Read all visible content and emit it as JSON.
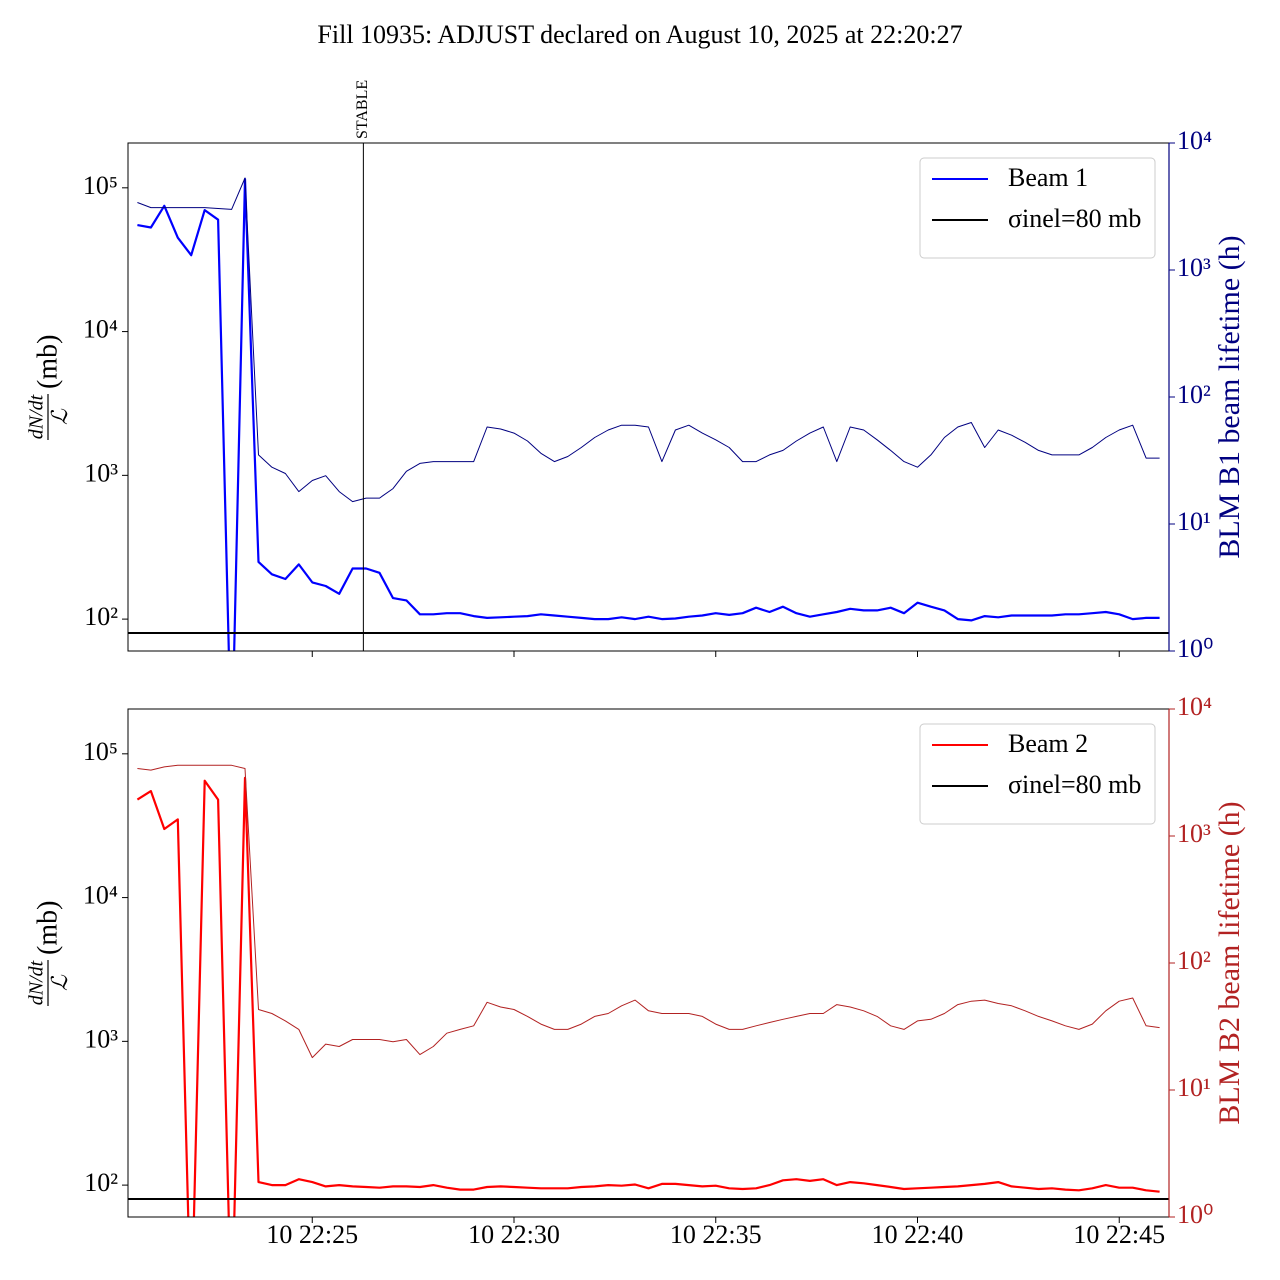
{
  "title": "Fill 10935: ADJUST declared on August 10, 2025 at 22:20:27",
  "chart_data": [
    {
      "type": "line",
      "log_y": true,
      "log_y2": true,
      "legend": "upper right",
      "show_xtick_labels": false,
      "ylabel_numerator": "dN/dt",
      "ylabel_denominator": "ℒ",
      "ylabel_unit": "(mb)",
      "y2label": "BLM B1 beam lifetime (h)",
      "y2color": "#000080",
      "xlim": [
        "10 22:20:26",
        "10 22:46:14"
      ],
      "xticks": [
        "10 22:25:00",
        "10 22:30:00",
        "10 22:35:00",
        "10 22:40:00",
        "10 22:45:00"
      ],
      "ylim": [
        60,
        205000
      ],
      "yticks": [
        {
          "value": 100,
          "label": "10²"
        },
        {
          "value": 1000,
          "label": "10³"
        },
        {
          "value": 10000,
          "label": "10⁴"
        },
        {
          "value": 100000,
          "label": "10⁵"
        }
      ],
      "y2lim": [
        1,
        10000
      ],
      "y2ticks": [
        {
          "value": 1,
          "label": "10⁰"
        },
        {
          "value": 10,
          "label": "10¹"
        },
        {
          "value": 100,
          "label": "10²"
        },
        {
          "value": 1000,
          "label": "10³"
        },
        {
          "value": 10000,
          "label": "10⁴"
        }
      ],
      "annotations": [
        {
          "x": "10 22:26:16",
          "label": "STABLE"
        }
      ],
      "hlines": [
        {
          "name": "σinel=80 mb",
          "value": 80,
          "color": "#000000"
        }
      ],
      "x": [
        "10 22:20:40",
        "10 22:21:00",
        "10 22:21:20",
        "10 22:21:40",
        "10 22:22:00",
        "10 22:22:20",
        "10 22:22:40",
        "10 22:23:00",
        "10 22:23:20",
        "10 22:23:40",
        "10 22:24:00",
        "10 22:24:20",
        "10 22:24:40",
        "10 22:25:00",
        "10 22:25:20",
        "10 22:25:40",
        "10 22:26:00",
        "10 22:26:20",
        "10 22:26:40",
        "10 22:27:00",
        "10 22:27:20",
        "10 22:27:40",
        "10 22:28:00",
        "10 22:28:20",
        "10 22:28:40",
        "10 22:29:00",
        "10 22:29:20",
        "10 22:29:40",
        "10 22:30:00",
        "10 22:30:20",
        "10 22:30:40",
        "10 22:31:00",
        "10 22:31:20",
        "10 22:31:40",
        "10 22:32:00",
        "10 22:32:20",
        "10 22:32:40",
        "10 22:33:00",
        "10 22:33:20",
        "10 22:33:40",
        "10 22:34:00",
        "10 22:34:20",
        "10 22:34:40",
        "10 22:35:00",
        "10 22:35:20",
        "10 22:35:40",
        "10 22:36:00",
        "10 22:36:20",
        "10 22:36:40",
        "10 22:37:00",
        "10 22:37:20",
        "10 22:37:40",
        "10 22:38:00",
        "10 22:38:20",
        "10 22:38:40",
        "10 22:39:00",
        "10 22:39:20",
        "10 22:39:40",
        "10 22:40:00",
        "10 22:40:20",
        "10 22:40:40",
        "10 22:41:00",
        "10 22:41:20",
        "10 22:41:40",
        "10 22:42:00",
        "10 22:42:20",
        "10 22:42:40",
        "10 22:43:00",
        "10 22:43:20",
        "10 22:43:40",
        "10 22:44:00",
        "10 22:44:20",
        "10 22:44:40",
        "10 22:45:00",
        "10 22:45:20",
        "10 22:45:40",
        "10 22:46:00"
      ],
      "series": [
        {
          "name": "Beam 1",
          "color": "#0000ff",
          "axis": "y",
          "width": 2.2,
          "values": [
            55000,
            53000,
            75000,
            45000,
            34000,
            70000,
            60000,
            10,
            115000,
            250,
            205,
            190,
            240,
            180,
            170,
            150,
            225,
            225,
            210,
            140,
            135,
            108,
            108,
            110,
            110,
            105,
            102,
            103,
            104,
            105,
            108,
            106,
            104,
            102,
            100,
            100,
            103,
            100,
            104,
            100,
            101,
            104,
            106,
            110,
            107,
            110,
            120,
            112,
            122,
            110,
            104,
            108,
            112,
            118,
            115,
            115,
            120,
            110,
            130,
            122,
            115,
            100,
            98,
            105,
            103,
            106,
            106,
            106,
            106,
            108,
            108,
            110,
            112,
            108,
            100,
            102,
            102
          ]
        },
        {
          "color": "#000080",
          "axis": "y2",
          "width": 1,
          "values": [
            3400,
            3100,
            3100,
            3100,
            3100,
            3100,
            3050,
            3000,
            5300,
            35,
            28,
            25,
            18,
            22,
            24,
            18,
            15,
            16,
            16,
            19,
            26,
            30,
            31,
            31,
            31,
            31,
            58,
            56,
            52,
            45,
            36,
            31,
            34,
            40,
            48,
            55,
            60,
            60,
            58,
            31,
            55,
            60,
            52,
            46,
            40,
            31,
            31,
            35,
            38,
            45,
            52,
            58,
            31,
            58,
            55,
            46,
            38,
            31,
            28,
            35,
            48,
            58,
            63,
            40,
            55,
            50,
            44,
            38,
            35,
            35,
            35,
            40,
            48,
            55,
            60,
            33,
            33
          ]
        }
      ]
    },
    {
      "type": "line",
      "log_y": true,
      "log_y2": true,
      "legend": "upper right",
      "show_xtick_labels": true,
      "ylabel_numerator": "dN/dt",
      "ylabel_denominator": "ℒ",
      "ylabel_unit": "(mb)",
      "y2label": "BLM B2 beam lifetime (h)",
      "y2color": "#b22222",
      "xlim": [
        "10 22:20:26",
        "10 22:46:14"
      ],
      "xticks": [
        {
          "value": "10 22:25:00",
          "label": "10 22:25"
        },
        {
          "value": "10 22:30:00",
          "label": "10 22:30"
        },
        {
          "value": "10 22:35:00",
          "label": "10 22:35"
        },
        {
          "value": "10 22:40:00",
          "label": "10 22:40"
        },
        {
          "value": "10 22:45:00",
          "label": "10 22:45"
        }
      ],
      "ylim": [
        60,
        205000
      ],
      "yticks": [
        {
          "value": 100,
          "label": "10²"
        },
        {
          "value": 1000,
          "label": "10³"
        },
        {
          "value": 10000,
          "label": "10⁴"
        },
        {
          "value": 100000,
          "label": "10⁵"
        }
      ],
      "y2lim": [
        1,
        10000
      ],
      "y2ticks": [
        {
          "value": 1,
          "label": "10⁰"
        },
        {
          "value": 10,
          "label": "10¹"
        },
        {
          "value": 100,
          "label": "10²"
        },
        {
          "value": 1000,
          "label": "10³"
        },
        {
          "value": 10000,
          "label": "10⁴"
        }
      ],
      "hlines": [
        {
          "name": "σinel=80 mb",
          "value": 80,
          "color": "#000000"
        }
      ],
      "x": [
        "10 22:20:40",
        "10 22:21:00",
        "10 22:21:20",
        "10 22:21:40",
        "10 22:22:00",
        "10 22:22:20",
        "10 22:22:40",
        "10 22:23:00",
        "10 22:23:20",
        "10 22:23:40",
        "10 22:24:00",
        "10 22:24:20",
        "10 22:24:40",
        "10 22:25:00",
        "10 22:25:20",
        "10 22:25:40",
        "10 22:26:00",
        "10 22:26:20",
        "10 22:26:40",
        "10 22:27:00",
        "10 22:27:20",
        "10 22:27:40",
        "10 22:28:00",
        "10 22:28:20",
        "10 22:28:40",
        "10 22:29:00",
        "10 22:29:20",
        "10 22:29:40",
        "10 22:30:00",
        "10 22:30:20",
        "10 22:30:40",
        "10 22:31:00",
        "10 22:31:20",
        "10 22:31:40",
        "10 22:32:00",
        "10 22:32:20",
        "10 22:32:40",
        "10 22:33:00",
        "10 22:33:20",
        "10 22:33:40",
        "10 22:34:00",
        "10 22:34:20",
        "10 22:34:40",
        "10 22:35:00",
        "10 22:35:20",
        "10 22:35:40",
        "10 22:36:00",
        "10 22:36:20",
        "10 22:36:40",
        "10 22:37:00",
        "10 22:37:20",
        "10 22:37:40",
        "10 22:38:00",
        "10 22:38:20",
        "10 22:38:40",
        "10 22:39:00",
        "10 22:39:20",
        "10 22:39:40",
        "10 22:40:00",
        "10 22:40:20",
        "10 22:40:40",
        "10 22:41:00",
        "10 22:41:20",
        "10 22:41:40",
        "10 22:42:00",
        "10 22:42:20",
        "10 22:42:40",
        "10 22:43:00",
        "10 22:43:20",
        "10 22:43:40",
        "10 22:44:00",
        "10 22:44:20",
        "10 22:44:40",
        "10 22:45:00",
        "10 22:45:20",
        "10 22:45:40",
        "10 22:46:00"
      ],
      "series": [
        {
          "name": "Beam 2",
          "color": "#ff0000",
          "axis": "y",
          "width": 2.2,
          "values": [
            48000,
            55000,
            30000,
            35000,
            10,
            65000,
            48000,
            10,
            68000,
            105,
            100,
            100,
            110,
            105,
            98,
            100,
            98,
            97,
            96,
            98,
            98,
            97,
            100,
            96,
            93,
            93,
            97,
            98,
            97,
            96,
            95,
            95,
            95,
            97,
            98,
            100,
            99,
            101,
            95,
            102,
            102,
            100,
            98,
            99,
            95,
            94,
            95,
            100,
            108,
            110,
            107,
            110,
            100,
            105,
            103,
            100,
            97,
            94,
            95,
            96,
            97,
            98,
            100,
            102,
            105,
            98,
            96,
            94,
            95,
            93,
            92,
            95,
            100,
            96,
            96,
            92,
            90
          ]
        },
        {
          "color": "#b22222",
          "axis": "y2",
          "width": 1,
          "values": [
            3400,
            3300,
            3500,
            3600,
            3600,
            3600,
            3600,
            3600,
            3400,
            43,
            40,
            35,
            30,
            18,
            23,
            22,
            25,
            25,
            25,
            24,
            25,
            19,
            22,
            28,
            30,
            32,
            49,
            45,
            43,
            38,
            33,
            30,
            30,
            33,
            38,
            40,
            46,
            51,
            42,
            40,
            40,
            40,
            38,
            33,
            30,
            30,
            32,
            34,
            36,
            38,
            40,
            40,
            47,
            45,
            42,
            38,
            32,
            30,
            35,
            36,
            40,
            47,
            50,
            51,
            48,
            46,
            42,
            38,
            35,
            32,
            30,
            33,
            42,
            50,
            53,
            32,
            31
          ]
        }
      ]
    }
  ]
}
